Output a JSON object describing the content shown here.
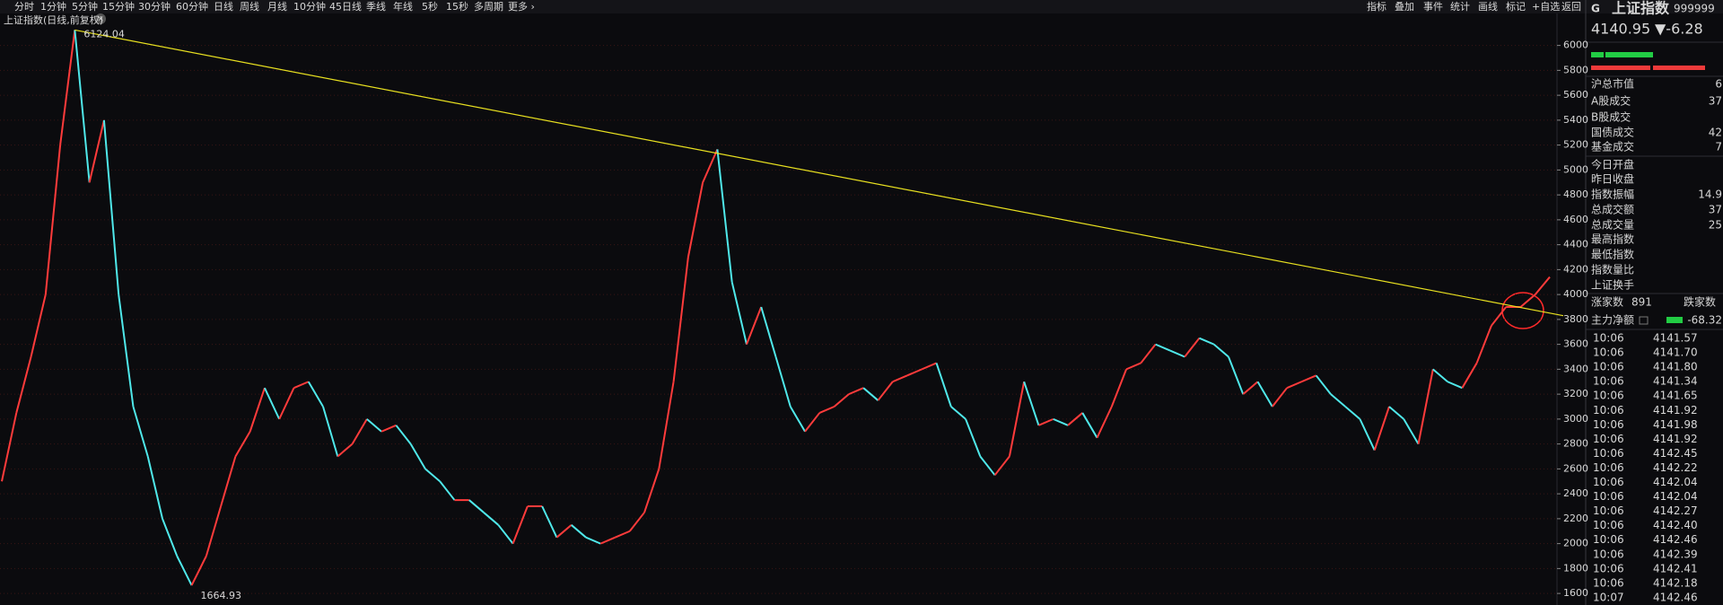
{
  "toolbar": {
    "periods": [
      "分时",
      "1分钟",
      "5分钟",
      "15分钟",
      "30分钟",
      "60分钟",
      "日线",
      "周线",
      "月线",
      "10分钟",
      "45日线",
      "季线",
      "年线",
      "5秒",
      "15秒",
      "多周期",
      "更多 ›"
    ],
    "active_period": "日线",
    "tools": [
      "指标",
      "叠加",
      "事件",
      "统计",
      "画线",
      "标记",
      "+自选",
      "返回"
    ]
  },
  "chart": {
    "title": "上证指数(日线,前复权)",
    "ylim": [
      1500,
      6300
    ],
    "yticks": [
      1600,
      1800,
      2000,
      2200,
      2400,
      2600,
      2800,
      3000,
      3200,
      3400,
      3600,
      3800,
      4000,
      4200,
      4400,
      4600,
      4800,
      5000,
      5200,
      5400,
      5600,
      5800,
      6000
    ],
    "values": [
      2500,
      3050,
      3500,
      4000,
      5200,
      6124.04,
      4900,
      5400,
      4000,
      3100,
      2700,
      2200,
      1900,
      1664.93,
      1900,
      2300,
      2700,
      2900,
      3250,
      3000,
      3250,
      3300,
      3100,
      2700,
      2800,
      3000,
      2900,
      2950,
      2800,
      2600,
      2500,
      2350,
      2350,
      2250,
      2150,
      2000,
      2300,
      2300,
      2050,
      2150,
      2050,
      2000,
      2050,
      2100,
      2250,
      2600,
      3300,
      4300,
      4900,
      5166,
      4100,
      3600,
      3900,
      3500,
      3100,
      2900,
      3050,
      3100,
      3200,
      3250,
      3150,
      3300,
      3350,
      3400,
      3450,
      3100,
      3000,
      2700,
      2550,
      2700,
      3300,
      2950,
      3000,
      2950,
      3050,
      2850,
      3100,
      3400,
      3450,
      3600,
      3550,
      3500,
      3650,
      3600,
      3500,
      3200,
      3300,
      3100,
      3250,
      3300,
      3350,
      3200,
      3100,
      3000,
      2750,
      3100,
      3000,
      2800,
      3400,
      3300,
      3250,
      3450,
      3750,
      3900,
      3900,
      4000,
      4141
    ],
    "high_label": "6124.04",
    "low_label": "1664.93",
    "trendline": [
      6124.04,
      3830
    ],
    "up_color": "#ff3b3b",
    "down_color": "#4fe8ea",
    "trend_color": "#e8e020"
  },
  "quote": {
    "marker": "G",
    "name": "上证指数",
    "code": "999999",
    "price": "4140.95",
    "change": "▼-6.28"
  },
  "stats": [
    {
      "label": "沪总市值",
      "value": "6"
    },
    {
      "label": "A股成交",
      "value": "37"
    },
    {
      "label": "B股成交"
    },
    {
      "label": "国债成交",
      "value": "42"
    },
    {
      "label": "基金成交",
      "value": "7"
    },
    {
      "label": "今日开盘"
    },
    {
      "label": "昨日收盘"
    },
    {
      "label": "指数振幅",
      "value": "14.9"
    },
    {
      "label": "总成交额",
      "value": "37"
    },
    {
      "label": "总成交量",
      "value": "25"
    },
    {
      "label": "最高指数"
    },
    {
      "label": "最低指数"
    },
    {
      "label": "指数量比"
    },
    {
      "label": "上证换手"
    }
  ],
  "breadth": {
    "up_label": "涨家数",
    "up": "891",
    "down_label": "跌家数"
  },
  "flow": {
    "label": "主力净额",
    "value": "-68.32"
  },
  "ticks": [
    {
      "time": "10:06",
      "price": "4141.57"
    },
    {
      "time": "10:06",
      "price": "4141.70"
    },
    {
      "time": "10:06",
      "price": "4141.80"
    },
    {
      "time": "10:06",
      "price": "4141.34"
    },
    {
      "time": "10:06",
      "price": "4141.65"
    },
    {
      "time": "10:06",
      "price": "4141.92"
    },
    {
      "time": "10:06",
      "price": "4141.98"
    },
    {
      "time": "10:06",
      "price": "4141.92"
    },
    {
      "time": "10:06",
      "price": "4142.45"
    },
    {
      "time": "10:06",
      "price": "4142.22"
    },
    {
      "time": "10:06",
      "price": "4142.04"
    },
    {
      "time": "10:06",
      "price": "4142.04"
    },
    {
      "time": "10:06",
      "price": "4142.27"
    },
    {
      "time": "10:06",
      "price": "4142.40"
    },
    {
      "time": "10:06",
      "price": "4142.46"
    },
    {
      "time": "10:06",
      "price": "4142.39"
    },
    {
      "time": "10:06",
      "price": "4142.41"
    },
    {
      "time": "10:06",
      "price": "4142.18"
    },
    {
      "time": "10:07",
      "price": "4142.46"
    }
  ]
}
